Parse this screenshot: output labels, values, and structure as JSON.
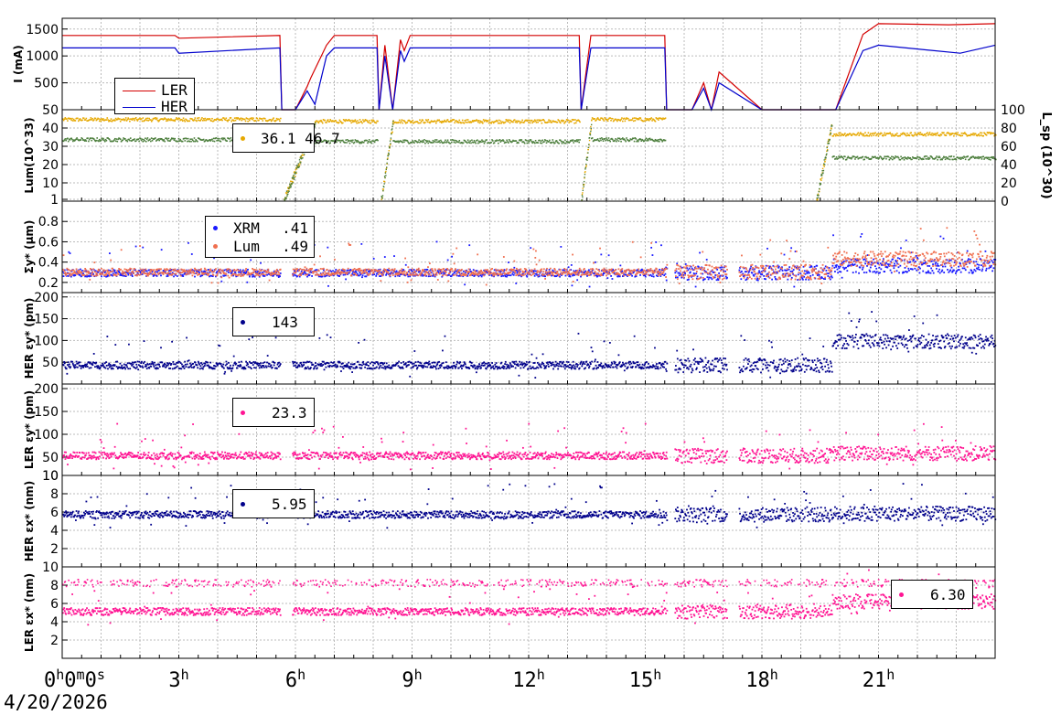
{
  "chart_data": [
    {
      "type": "line",
      "ylabel": "I (mA)",
      "ylim": [
        0,
        1700
      ],
      "yticks": [
        500,
        1000,
        1500
      ],
      "legend": {
        "placement": "upper-left",
        "entries": [
          "LER",
          "HER"
        ]
      },
      "series": [
        {
          "name": "LER",
          "color": "#d40000",
          "x": [
            0,
            2.9,
            3.0,
            5.6,
            5.65,
            6.0,
            6.3,
            6.4,
            6.8,
            7.0,
            8.1,
            8.15,
            8.3,
            8.5,
            8.7,
            8.8,
            8.95,
            9.3,
            13.3,
            13.35,
            13.6,
            13.9,
            15.5,
            15.55,
            16.2,
            16.5,
            16.7,
            16.9,
            18.0,
            19.5,
            19.9,
            20.6,
            21.0,
            22.8,
            24.0
          ],
          "y": [
            1380,
            1380,
            1330,
            1380,
            0,
            0,
            430,
            600,
            1200,
            1380,
            1380,
            0,
            1200,
            0,
            1300,
            1100,
            1380,
            1380,
            1380,
            0,
            1380,
            1380,
            1380,
            0,
            0,
            500,
            0,
            700,
            0,
            0,
            0,
            1400,
            1600,
            1580,
            1600
          ]
        },
        {
          "name": "HER",
          "color": "#0000cc",
          "x": [
            0,
            2.9,
            3.0,
            5.6,
            5.65,
            6.0,
            6.3,
            6.5,
            6.8,
            7.0,
            8.1,
            8.15,
            8.3,
            8.5,
            8.7,
            8.8,
            8.95,
            9.3,
            13.3,
            13.35,
            13.6,
            13.9,
            15.5,
            15.55,
            16.2,
            16.5,
            16.7,
            16.9,
            18.0,
            19.5,
            19.9,
            20.6,
            21.0,
            23.1,
            24.0
          ],
          "y": [
            1150,
            1150,
            1050,
            1150,
            0,
            0,
            350,
            100,
            1000,
            1150,
            1150,
            0,
            1000,
            0,
            1100,
            900,
            1150,
            1150,
            1150,
            0,
            1150,
            1150,
            1150,
            0,
            0,
            400,
            0,
            500,
            0,
            0,
            0,
            1100,
            1200,
            1050,
            1200
          ]
        }
      ]
    },
    {
      "type": "scatter",
      "ylabel": "Lum(10^33)",
      "ylim": [
        0,
        50
      ],
      "yticks": [
        1,
        10,
        20,
        30,
        40,
        50
      ],
      "y2label": "L_sp (10^30)",
      "y2ticks": [
        0,
        20,
        40,
        60,
        80,
        100
      ],
      "legend": {
        "placement": "upper-left",
        "value": "36.1 / 46.7"
      },
      "series": [
        {
          "name": "Lum",
          "color": "#e6a800",
          "segments": [
            [
              0,
              5.6,
              45
            ],
            [
              6.5,
              8.1,
              44
            ],
            [
              8.5,
              13.3,
              44
            ],
            [
              13.6,
              15.5,
              45
            ],
            [
              19.8,
              24,
              37
            ]
          ]
        },
        {
          "name": "L_sp",
          "color": "#4a7d3a",
          "segments": [
            [
              0,
              5.6,
              34
            ],
            [
              6.5,
              8.1,
              33
            ],
            [
              8.5,
              13.3,
              33
            ],
            [
              13.6,
              15.5,
              34
            ],
            [
              19.8,
              24,
              24
            ]
          ]
        }
      ]
    },
    {
      "type": "scatter",
      "ylabel": "Σy* (μm)",
      "ylim": [
        0.1,
        1.0
      ],
      "yticks": [
        0.2,
        0.4,
        0.6,
        0.8
      ],
      "legend": {
        "placement": "upper-left",
        "entries": [
          {
            "name": "XRM",
            "value": ".41"
          },
          {
            "name": "Lum",
            "value": ".49"
          }
        ]
      },
      "series": [
        {
          "name": "XRM",
          "color": "#1a1aff",
          "level_a": 0.3,
          "level_b": 0.37
        },
        {
          "name": "Lum",
          "color": "#f07050",
          "level_a": 0.31,
          "level_b": 0.44
        }
      ]
    },
    {
      "type": "scatter",
      "ylabel": "HER εy* (pm)",
      "ylim": [
        0,
        210
      ],
      "yticks": [
        50,
        100,
        150,
        200
      ],
      "legend": {
        "placement": "upper-left",
        "value": "143"
      },
      "series": [
        {
          "name": "HER εy*",
          "color": "#00008b",
          "level_a": 45,
          "level_b": 100
        }
      ]
    },
    {
      "type": "scatter",
      "ylabel": "LER εy* (pm)",
      "ylim": [
        10,
        210
      ],
      "yticks": [
        10,
        50,
        100,
        150,
        200
      ],
      "legend": {
        "placement": "upper-left",
        "value": "23.3"
      },
      "series": [
        {
          "name": "LER εy*",
          "color": "#ff1493",
          "level_a": 55,
          "level_b": 60
        }
      ]
    },
    {
      "type": "scatter",
      "ylabel": "HER εx* (nm)",
      "ylim": [
        0,
        10
      ],
      "yticks": [
        2,
        4,
        6,
        8,
        10
      ],
      "legend": {
        "placement": "upper-left",
        "value": "5.95"
      },
      "series": [
        {
          "name": "HER εx*",
          "color": "#00008b",
          "level_a": 5.8,
          "level_b": 5.9
        }
      ]
    },
    {
      "type": "scatter",
      "ylabel": "LER εx* (nm)",
      "ylim": [
        0,
        10
      ],
      "yticks": [
        2,
        4,
        6,
        8,
        10
      ],
      "legend": {
        "placement": "lower-right",
        "value": "6.30"
      },
      "series": [
        {
          "name": "LER εx*",
          "color": "#ff1493",
          "level_a": 5.2,
          "level_b": 6.3,
          "upper_band": 8.3
        }
      ]
    }
  ],
  "x_axis": {
    "range_hours": [
      0,
      24
    ],
    "ticks": [
      {
        "h": 0,
        "label": "0h0m0s"
      },
      {
        "h": 3,
        "label": "3h"
      },
      {
        "h": 6,
        "label": "6h"
      },
      {
        "h": 9,
        "label": "9h"
      },
      {
        "h": 12,
        "label": "12h"
      },
      {
        "h": 15,
        "label": "15h"
      },
      {
        "h": 18,
        "label": "18h"
      },
      {
        "h": 21,
        "label": "21h"
      }
    ]
  },
  "legends": {
    "p0": {
      "ler": "LER",
      "her": "HER"
    },
    "p1": {
      "value": "36.1 46.7"
    },
    "p2": {
      "xrm_name": "XRM",
      "xrm_value": ".41",
      "lum_name": "Lum",
      "lum_value": ".49"
    },
    "p3": {
      "value": "143"
    },
    "p4": {
      "value": "23.3"
    },
    "p5": {
      "value": "5.95"
    },
    "p6": {
      "value": "6.30"
    }
  },
  "date": "4/20/2026",
  "colors": {
    "ler": "#d40000",
    "her": "#0000cc",
    "lum": "#e6a800",
    "lsp": "#4a7d3a",
    "xrm": "#1a1aff",
    "lum_size": "#f07050",
    "navy": "#00008b",
    "pink": "#ff1493"
  }
}
